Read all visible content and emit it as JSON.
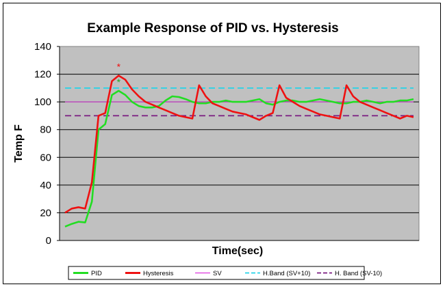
{
  "chart_data": {
    "type": "line",
    "title": "Example Response of PID vs. Hysteresis",
    "xlabel": "Time(sec)",
    "ylabel": "Temp F",
    "ylim": [
      0,
      140
    ],
    "yticks": [
      "0",
      "20",
      "40",
      "60",
      "80",
      "100",
      "120",
      "140"
    ],
    "xlim": [
      0,
      52
    ],
    "grid": true,
    "legend_position": "bottom",
    "x": [
      0,
      1,
      2,
      3,
      4,
      5,
      6,
      7,
      8,
      9,
      10,
      11,
      12,
      13,
      14,
      15,
      16,
      17,
      18,
      19,
      20,
      21,
      22,
      23,
      24,
      25,
      26,
      27,
      28,
      29,
      30,
      31,
      32,
      33,
      34,
      35,
      36,
      37,
      38,
      39,
      40,
      41,
      42,
      43,
      44,
      45,
      46,
      47,
      48,
      49,
      50,
      51,
      52
    ],
    "series": [
      {
        "name": "PID",
        "color": "#22dd22",
        "dash": "solid",
        "values": [
          10,
          12,
          13.5,
          13,
          28,
          80,
          84,
          105,
          108,
          105,
          100,
          97,
          96,
          96,
          97,
          101,
          104,
          103.5,
          102,
          100,
          99,
          99,
          100,
          100,
          101,
          100,
          100,
          100,
          101,
          102,
          99,
          98,
          100,
          101,
          101,
          100,
          100,
          101,
          102,
          101,
          100,
          99,
          99,
          100,
          100,
          101,
          100,
          99,
          100,
          100,
          101,
          101,
          102
        ]
      },
      {
        "name": "Hysteresis",
        "color": "#ee1111",
        "dash": "solid",
        "values": [
          20,
          23,
          24,
          23,
          42,
          90,
          92,
          115,
          119,
          116,
          109,
          104,
          100,
          98,
          96,
          94,
          92,
          90,
          89,
          88,
          112,
          104,
          99,
          97,
          95,
          93,
          92,
          91,
          89,
          87,
          90,
          92,
          112,
          103,
          100,
          97,
          95,
          93,
          91,
          90,
          89,
          88,
          112,
          104,
          100,
          98,
          96,
          94,
          92,
          90,
          88,
          90,
          89
        ]
      },
      {
        "name": "SV",
        "color": "#dd33dd",
        "dash": "solid",
        "constant": 100
      },
      {
        "name": "H.Band (SV+10)",
        "color": "#22d4e8",
        "dash": "dashed",
        "constant": 110
      },
      {
        "name": "H. Band (SV-10)",
        "color": "#7a1a80",
        "dash": "dashed",
        "constant": 90
      }
    ],
    "annotations": [
      {
        "text": "*",
        "x": 8,
        "y": 123,
        "color": "#ee1111"
      },
      {
        "text": "*",
        "x": 8,
        "y": 112,
        "color": "#22aa22"
      }
    ]
  },
  "legend": {
    "items": [
      {
        "label": "PID",
        "color": "#22dd22",
        "dash": "solid"
      },
      {
        "label": "Hysteresis",
        "color": "#ee1111",
        "dash": "solid"
      },
      {
        "label": "SV",
        "color": "#dd33dd",
        "dash": "solid"
      },
      {
        "label": "H.Band (SV+10)",
        "color": "#22d4e8",
        "dash": "dashed"
      },
      {
        "label": "H. Band (SV-10)",
        "color": "#7a1a80",
        "dash": "dashed"
      }
    ]
  },
  "colors": {
    "plot_background": "#c0c0c0",
    "grid": "#000000",
    "frame": "#000000"
  }
}
